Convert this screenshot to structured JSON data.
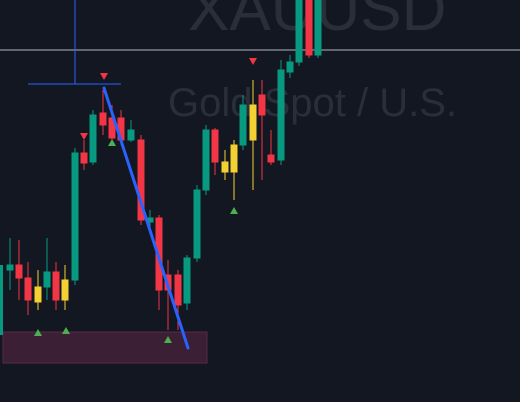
{
  "watermark": {
    "symbol": "XAUUSD",
    "description": "Gold Spot / U.S."
  }
}
